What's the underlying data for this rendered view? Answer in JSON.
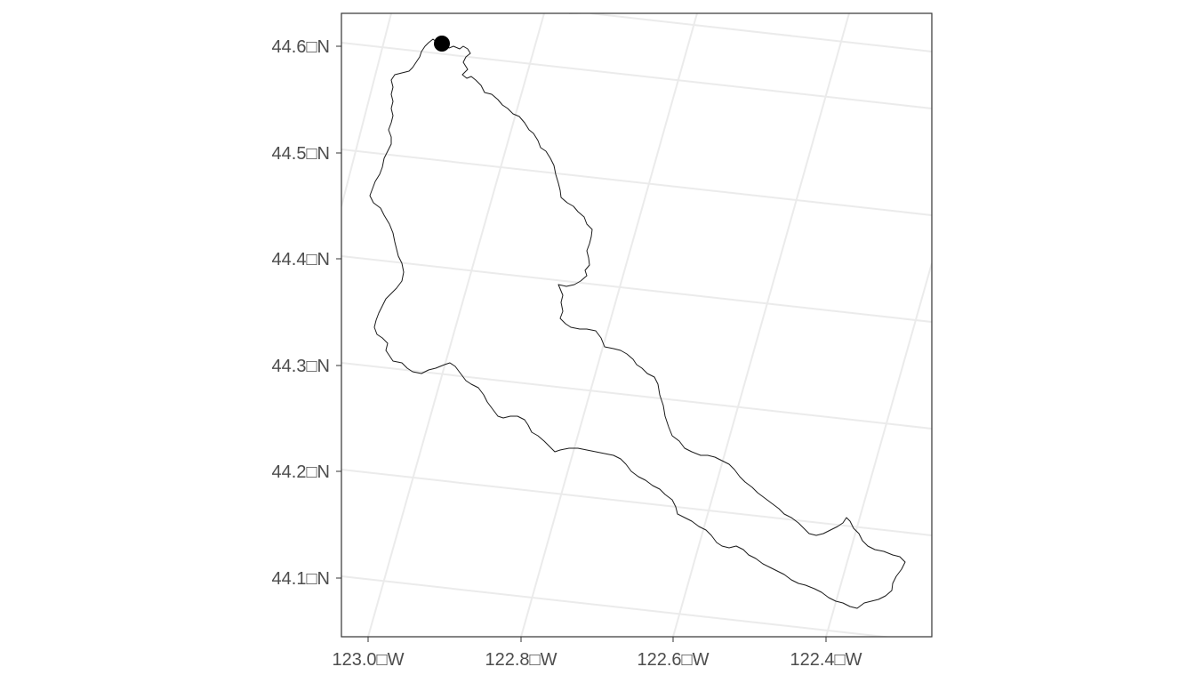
{
  "map": {
    "y_axis_labels": [
      "44.6□N",
      "44.5□N",
      "44.4□N",
      "44.3□N",
      "44.2□N",
      "44.1□N"
    ],
    "x_axis_labels": [
      "123.0□W",
      "122.8□W",
      "122.6□W",
      "122.4□W"
    ],
    "grid": true,
    "background": "#ffffff",
    "gridline_color": "#ebebeb",
    "outline_color": "#1a1a1a",
    "point_color": "#000000",
    "features": {
      "watershed_outline": "watershed",
      "outlet_point": "gauge"
    }
  }
}
